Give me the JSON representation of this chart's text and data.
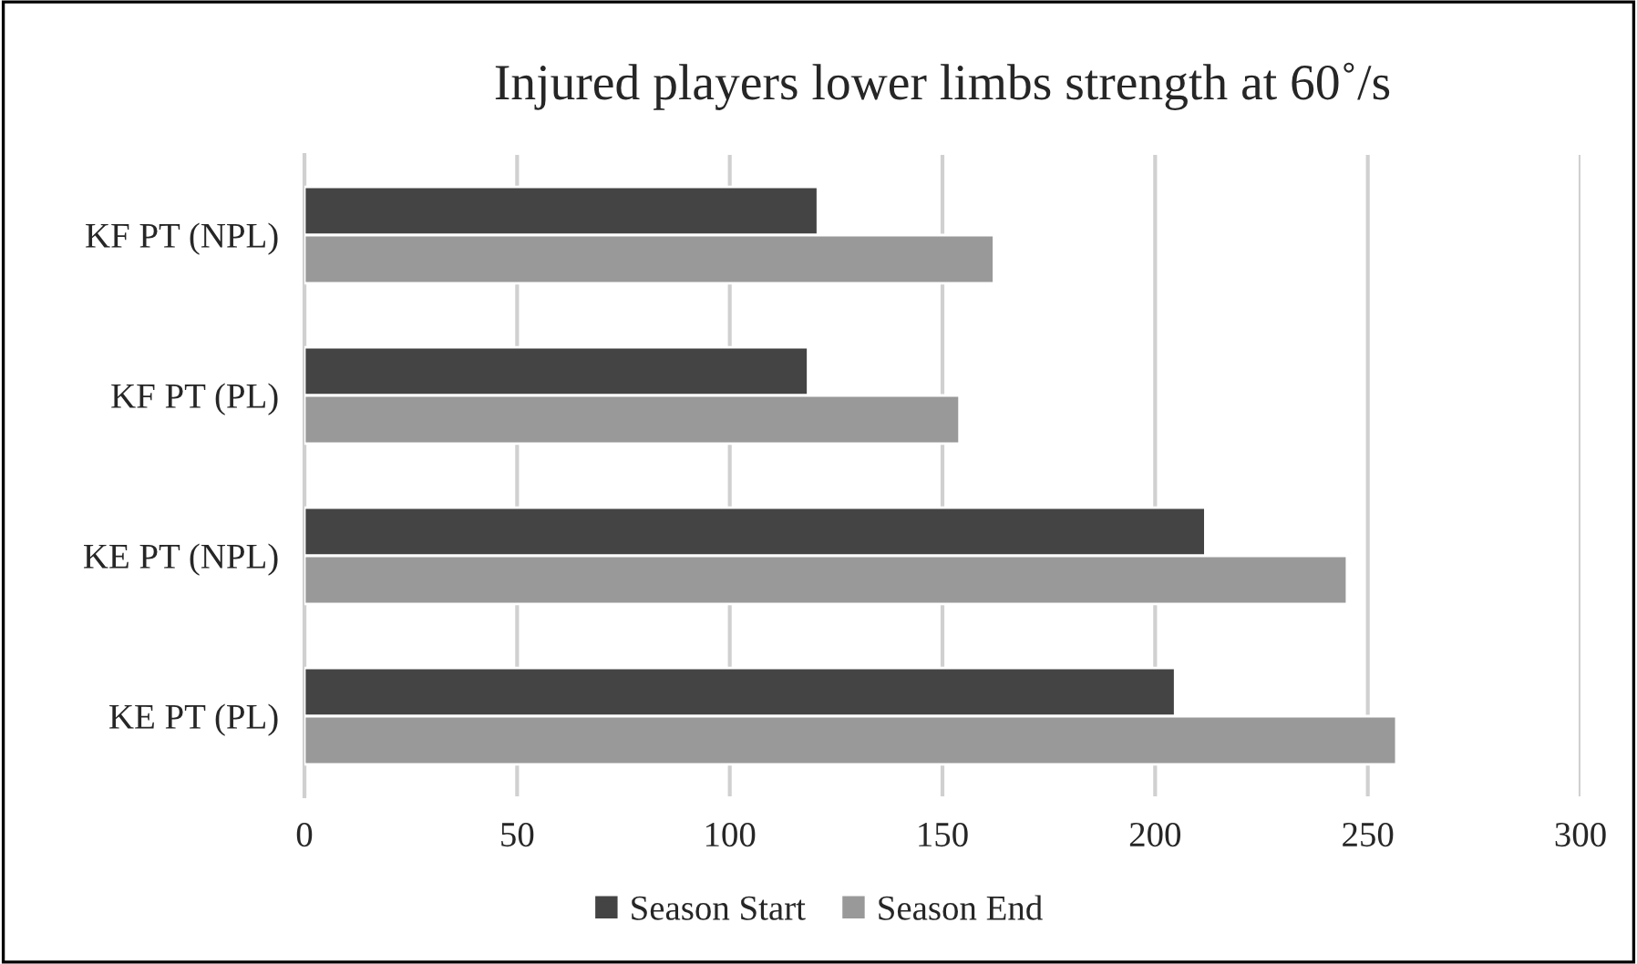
{
  "chart_data": {
    "type": "bar",
    "orientation": "horizontal",
    "title": "Injured players lower limbs strength at 60˚/s",
    "categories": [
      "KF PT (NPL)",
      "KF PT (PL)",
      "KE PT (NPL)",
      "KE PT (PL)"
    ],
    "series": [
      {
        "name": "Season Start",
        "color": "#444444",
        "values": [
          120.7,
          118.4,
          211.8,
          204.7
        ]
      },
      {
        "name": "Season End",
        "color": "#999999",
        "values": [
          162.1,
          154,
          245.1,
          256.7
        ]
      }
    ],
    "xlim": [
      0,
      300
    ],
    "xticks": [
      0,
      50,
      100,
      150,
      200,
      250,
      300
    ],
    "grid": "x",
    "legend": "bottom"
  }
}
